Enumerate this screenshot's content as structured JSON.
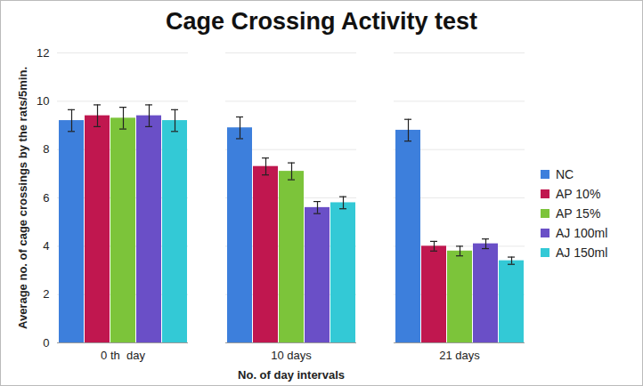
{
  "chart_data": {
    "type": "bar",
    "title": "Cage Crossing Activity test",
    "x_label": "No. of day intervals",
    "y_label": "Average no. of cage crossings by the rats/5min.",
    "categories": [
      "0 th  day",
      "10 days",
      "21 days"
    ],
    "series": [
      {
        "name": "NC",
        "color": "#3d7fdc",
        "values": [
          9.2,
          8.9,
          8.8
        ],
        "errors": [
          0.45,
          0.45,
          0.45
        ]
      },
      {
        "name": "AP 10%",
        "color": "#c0174f",
        "values": [
          9.4,
          7.3,
          4.0
        ],
        "errors": [
          0.45,
          0.35,
          0.2
        ]
      },
      {
        "name": "AP 15%",
        "color": "#7cc43a",
        "values": [
          9.3,
          7.1,
          3.8
        ],
        "errors": [
          0.45,
          0.35,
          0.2
        ]
      },
      {
        "name": "AJ 100ml",
        "color": "#6a4fc7",
        "values": [
          9.4,
          5.6,
          4.1
        ],
        "errors": [
          0.45,
          0.25,
          0.2
        ]
      },
      {
        "name": "AJ 150ml",
        "color": "#33c9d6",
        "values": [
          9.2,
          5.8,
          3.4
        ],
        "errors": [
          0.45,
          0.25,
          0.15
        ]
      }
    ],
    "ylim": [
      0,
      12
    ],
    "yticks": [
      0,
      2,
      4,
      6,
      8,
      10,
      12
    ],
    "grid": true,
    "legend": "right"
  }
}
